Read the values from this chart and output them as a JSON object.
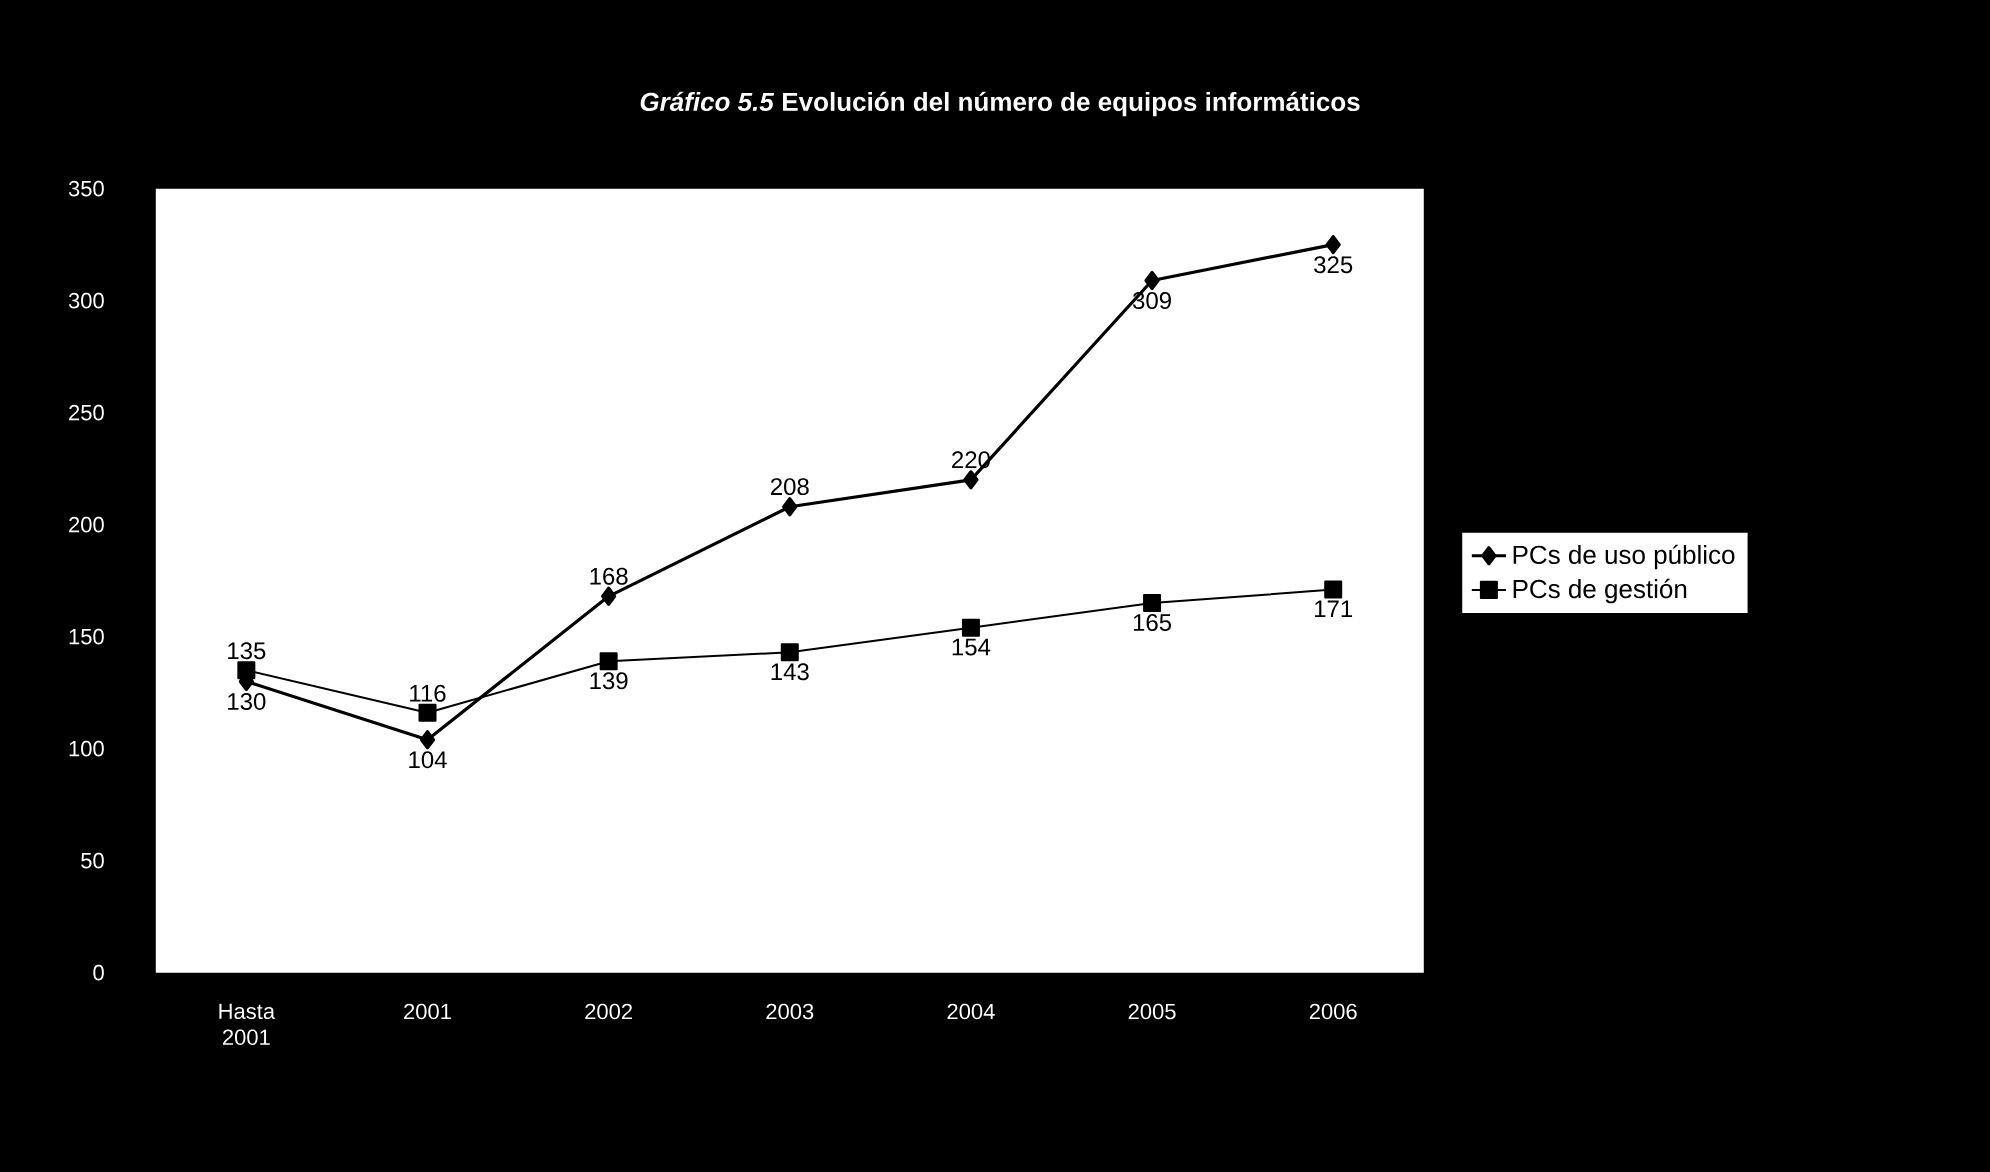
{
  "chart_data": {
    "type": "line",
    "title": "*Gráfico 5.5* Evolución del número de equipos informáticos",
    "categories": [
      "Hasta 2001",
      "2001",
      "2002",
      "2003",
      "2004",
      "2005",
      "2006"
    ],
    "series": [
      {
        "name": "PCs de uso público",
        "color": "#000000",
        "marker": "diamond",
        "values": [
          130,
          104,
          168,
          208,
          220,
          309,
          325
        ]
      },
      {
        "name": "PCs de gestión",
        "color": "#000000",
        "marker": "square",
        "values": [
          135,
          116,
          139,
          143,
          154,
          165,
          171
        ]
      }
    ],
    "ylim": [
      0,
      350
    ],
    "yticks": [
      0,
      50,
      100,
      150,
      200,
      250,
      300,
      350
    ],
    "data_labels": true,
    "legend": "right",
    "line_style": "solid"
  }
}
